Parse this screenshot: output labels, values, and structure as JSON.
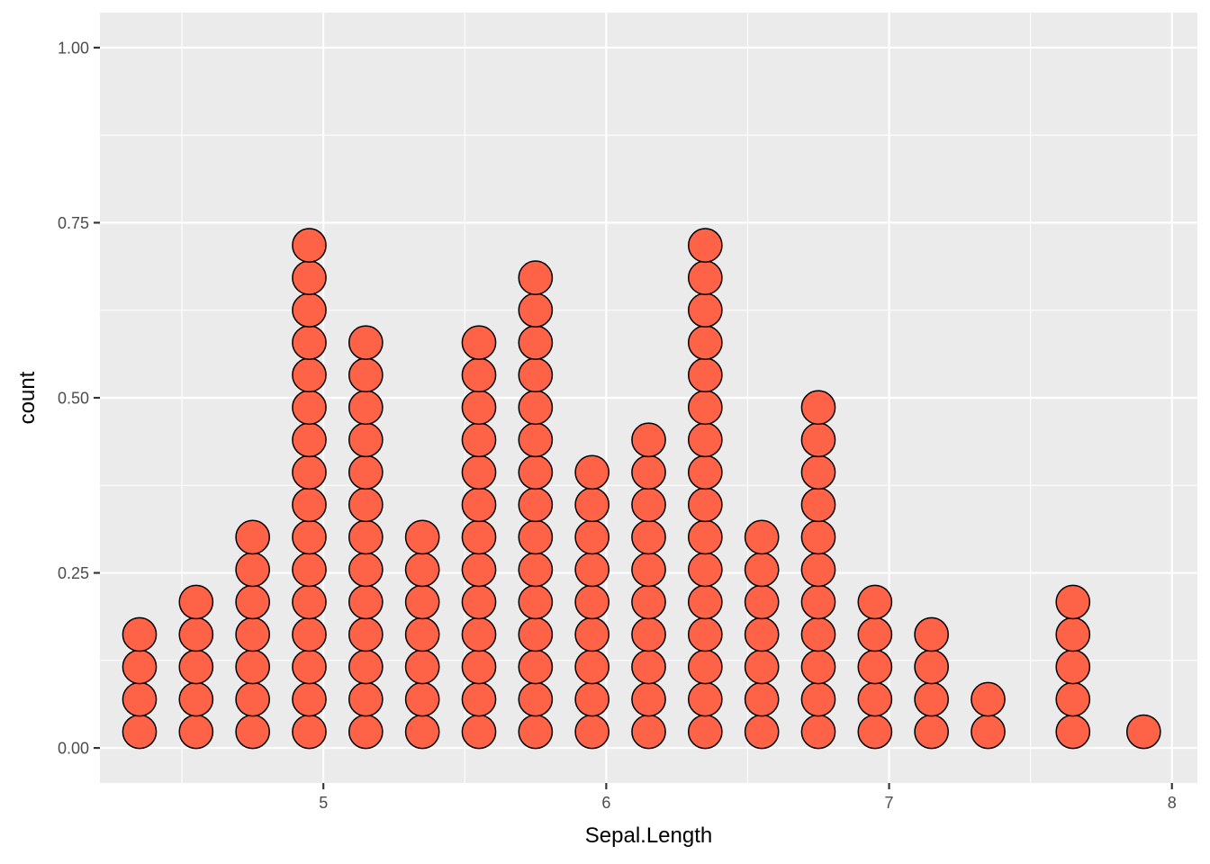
{
  "chart_data": {
    "type": "dotplot",
    "xlabel": "Sepal.Length",
    "ylabel": "count",
    "xlim": [
      4.21,
      8.09
    ],
    "ylim": [
      -0.05,
      1.05
    ],
    "x_ticks": [
      5,
      6,
      7,
      8
    ],
    "x_tick_labels": [
      "5",
      "6",
      "7",
      "8"
    ],
    "y_ticks": [
      0.0,
      0.25,
      0.5,
      0.75,
      1.0
    ],
    "y_tick_labels": [
      "0.00",
      "0.25",
      "0.50",
      "0.75",
      "1.00"
    ],
    "x_minor_ticks": [
      4.5,
      5.5,
      6.5,
      7.5
    ],
    "y_minor_ticks": [
      0.125,
      0.375,
      0.625,
      0.875
    ],
    "grid": true,
    "colors": {
      "panel_background": "#EBEBEB",
      "grid_line": "#FFFFFF",
      "dot_fill": "#FF6347",
      "dot_stroke": "#000000",
      "tick_text": "#4D4D4D",
      "tick_mark": "#333333",
      "axis_title": "#000000"
    },
    "stack": {
      "first_center": 0.0232,
      "step": 0.0463,
      "dot_diameter_x": 0.1184
    },
    "bins": [
      {
        "x": 4.35,
        "count": 4
      },
      {
        "x": 4.55,
        "count": 5
      },
      {
        "x": 4.75,
        "count": 7
      },
      {
        "x": 4.95,
        "count": 16
      },
      {
        "x": 5.15,
        "count": 13
      },
      {
        "x": 5.35,
        "count": 7
      },
      {
        "x": 5.55,
        "count": 13
      },
      {
        "x": 5.75,
        "count": 15
      },
      {
        "x": 5.95,
        "count": 9
      },
      {
        "x": 6.15,
        "count": 10
      },
      {
        "x": 6.35,
        "count": 16
      },
      {
        "x": 6.55,
        "count": 7
      },
      {
        "x": 6.75,
        "count": 11
      },
      {
        "x": 6.95,
        "count": 5
      },
      {
        "x": 7.15,
        "count": 4
      },
      {
        "x": 7.35,
        "count": 2
      },
      {
        "x": 7.65,
        "count": 5
      },
      {
        "x": 7.9,
        "count": 1
      }
    ]
  }
}
